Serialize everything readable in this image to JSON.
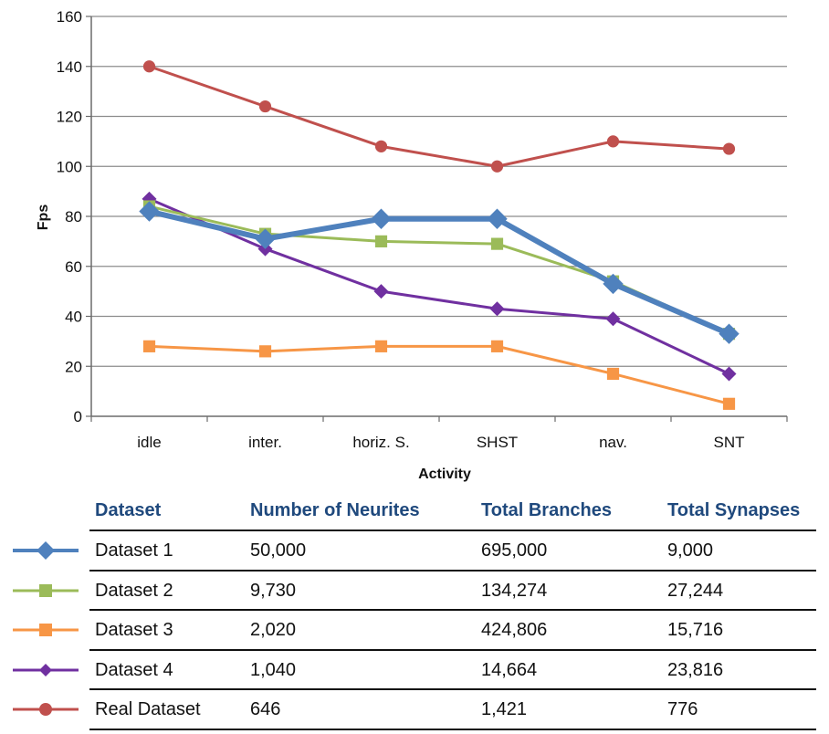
{
  "chart_data": {
    "type": "line",
    "categories": [
      "idle",
      "inter.",
      "horiz. S.",
      "SHST",
      "nav.",
      "SNT"
    ],
    "xlabel": "Activity",
    "ylabel": "Fps",
    "ylim": [
      0,
      160
    ],
    "yticks": [
      0,
      20,
      40,
      60,
      80,
      100,
      120,
      140,
      160
    ],
    "grid": true,
    "series": [
      {
        "name": "Real Dataset",
        "color": "#c0504d",
        "marker": "circle",
        "values": [
          140,
          124,
          108,
          100,
          110,
          107
        ]
      },
      {
        "name": "Dataset 4",
        "color": "#7030a0",
        "marker": "diamond",
        "values": [
          87,
          67,
          50,
          43,
          39,
          17
        ]
      },
      {
        "name": "Dataset 2",
        "color": "#9bbb59",
        "marker": "square",
        "values": [
          84,
          73,
          70,
          69,
          54,
          33
        ]
      },
      {
        "name": "Dataset 1",
        "color": "#4f81bd",
        "marker": "diamond",
        "values": [
          82,
          71,
          79,
          79,
          53,
          33
        ]
      },
      {
        "name": "Dataset 3",
        "color": "#f79646",
        "marker": "square",
        "values": [
          28,
          26,
          28,
          28,
          17,
          5
        ]
      }
    ]
  },
  "table": {
    "headers": [
      "Dataset",
      "Number of Neurites",
      "Total Branches",
      "Total Synapses"
    ],
    "rows": [
      {
        "name": "Dataset 1",
        "neurites": "50,000",
        "branches": "695,000",
        "synapses": "9,000",
        "color": "#4f81bd",
        "marker": "diamond"
      },
      {
        "name": "Dataset 2",
        "neurites": "9,730",
        "branches": "134,274",
        "synapses": "27,244",
        "color": "#9bbb59",
        "marker": "square"
      },
      {
        "name": "Dataset 3",
        "neurites": "2,020",
        "branches": "424,806",
        "synapses": "15,716",
        "color": "#f79646",
        "marker": "square"
      },
      {
        "name": "Dataset 4",
        "neurites": "1,040",
        "branches": "14,664",
        "synapses": "23,816",
        "color": "#7030a0",
        "marker": "diamond"
      },
      {
        "name": "Real Dataset",
        "neurites": "646",
        "branches": "1,421",
        "synapses": "776",
        "color": "#c0504d",
        "marker": "circle"
      }
    ]
  }
}
